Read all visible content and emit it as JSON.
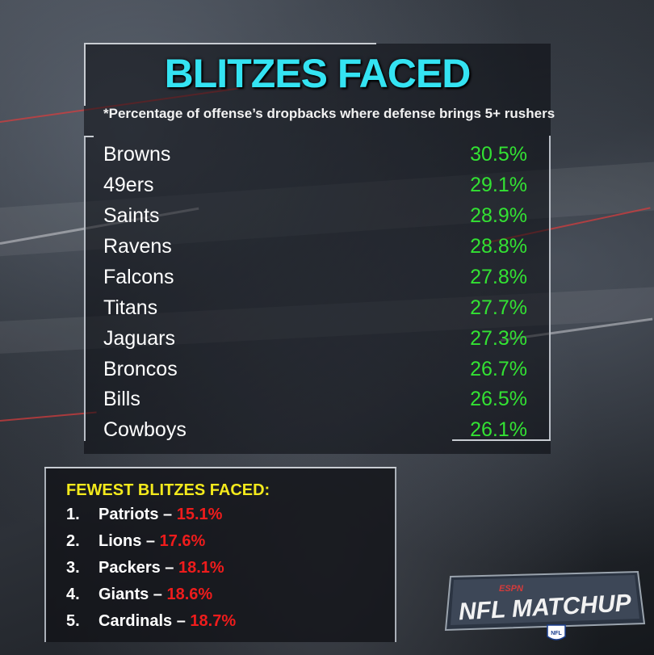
{
  "title": "BLITZES FACED",
  "subtitle": "*Percentage of offense’s dropbacks where defense brings 5+ rushers",
  "teams": [
    {
      "name": "Browns",
      "pct": "30.5%"
    },
    {
      "name": "49ers",
      "pct": "29.1%"
    },
    {
      "name": "Saints",
      "pct": "28.9%"
    },
    {
      "name": "Ravens",
      "pct": "28.8%"
    },
    {
      "name": "Falcons",
      "pct": "27.8%"
    },
    {
      "name": "Titans",
      "pct": "27.7%"
    },
    {
      "name": "Jaguars",
      "pct": "27.3%"
    },
    {
      "name": "Broncos",
      "pct": "26.7%"
    },
    {
      "name": "Bills",
      "pct": "26.5%"
    },
    {
      "name": "Cowboys",
      "pct": "26.1%"
    }
  ],
  "fewest": {
    "title": "FEWEST BLITZES FACED:",
    "items": [
      {
        "num": "1.",
        "team": "Patriots – ",
        "pct": "15.1%"
      },
      {
        "num": "2.",
        "team": "Lions – ",
        "pct": "17.6%"
      },
      {
        "num": "3.",
        "team": "Packers – ",
        "pct": "18.1%"
      },
      {
        "num": "4.",
        "team": "Giants – ",
        "pct": "18.6%"
      },
      {
        "num": "5.",
        "team": "Cardinals – ",
        "pct": "18.7%"
      }
    ]
  },
  "logo": {
    "network": "ESPN",
    "show": "NFL MATCHUP",
    "badge": "NFL"
  },
  "colors": {
    "title": "#34e3f2",
    "top_pct": "#33e233",
    "fewest_title": "#f4ea1c",
    "fewest_pct": "#ee1c1c"
  }
}
